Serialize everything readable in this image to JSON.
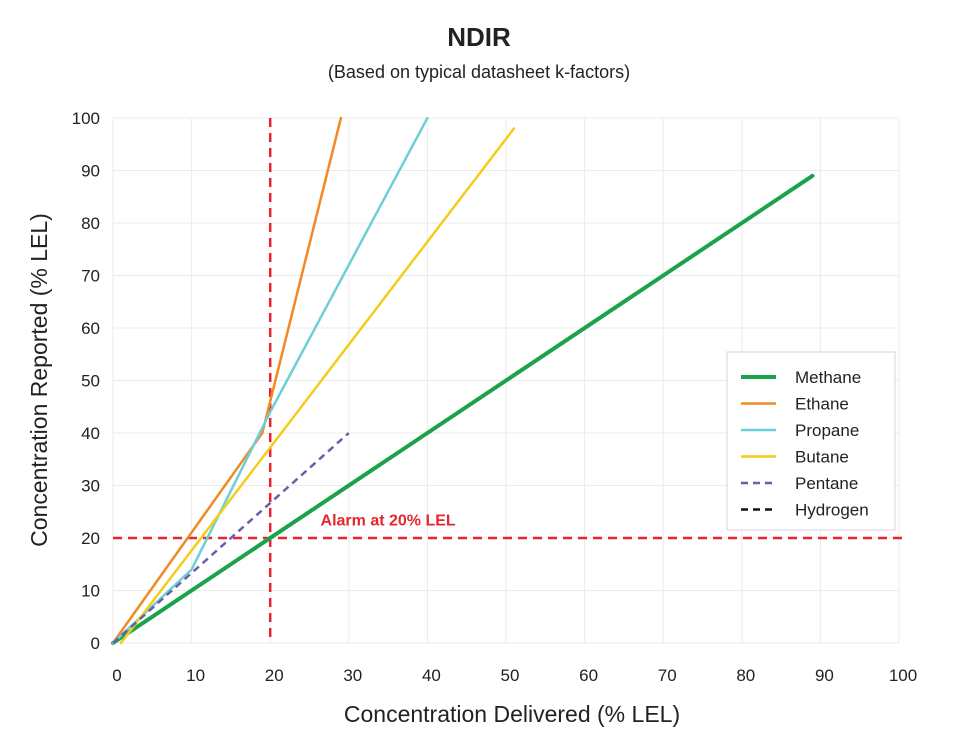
{
  "chart_data": {
    "type": "line",
    "title": "NDIR",
    "subtitle": "(Based on typical datasheet k-factors)",
    "xlabel": "Concentration Delivered (% LEL)",
    "ylabel": "Concentration Reported (% LEL)",
    "xlim": [
      0,
      100
    ],
    "ylim": [
      0,
      100
    ],
    "xticks": [
      "0",
      "10",
      "20",
      "30",
      "40",
      "50",
      "60",
      "70",
      "80",
      "90",
      "100"
    ],
    "yticks": [
      "0",
      "10",
      "20",
      "30",
      "40",
      "50",
      "60",
      "70",
      "80",
      "90",
      "100"
    ],
    "grid": true,
    "legend_position": "right",
    "series": [
      {
        "name": "Methane",
        "color": "#1aa34a",
        "dash": "solid",
        "width": 4,
        "x": [
          0,
          89
        ],
        "y": [
          0,
          89
        ]
      },
      {
        "name": "Ethane",
        "color": "#f08a24",
        "dash": "solid",
        "width": 2.5,
        "x": [
          0,
          19,
          29
        ],
        "y": [
          0,
          40,
          100
        ]
      },
      {
        "name": "Propane",
        "color": "#6ccfd8",
        "dash": "solid",
        "width": 2.5,
        "x": [
          0,
          10,
          20,
          40
        ],
        "y": [
          0,
          14,
          44,
          100
        ]
      },
      {
        "name": "Butane",
        "color": "#f5cc1a",
        "dash": "solid",
        "width": 2.5,
        "x": [
          1,
          51
        ],
        "y": [
          0,
          98
        ]
      },
      {
        "name": "Pentane",
        "color": "#6a5fa8",
        "dash": "dashed",
        "width": 2.5,
        "x": [
          0,
          30
        ],
        "y": [
          0,
          40
        ]
      },
      {
        "name": "Hydrogen",
        "color": "#111111",
        "dash": "dashed",
        "width": 2.5,
        "x": [],
        "y": []
      }
    ],
    "reference_lines": [
      {
        "orientation": "vertical",
        "value": 20,
        "color": "#e3262f"
      },
      {
        "orientation": "horizontal",
        "value": 20,
        "color": "#e3262f"
      }
    ],
    "annotations": [
      {
        "text": "Alarm at 20% LEL",
        "x": 35,
        "y": 22
      }
    ]
  }
}
